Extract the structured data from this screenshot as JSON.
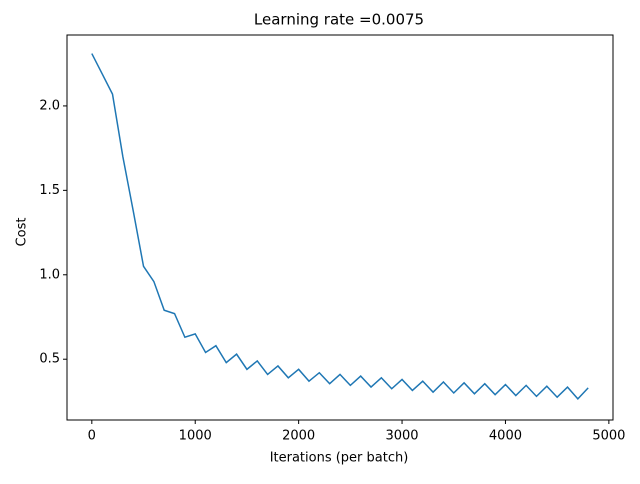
{
  "chart_data": {
    "type": "line",
    "title": "Learning rate =0.0075",
    "xlabel": "Iterations (per batch)",
    "ylabel": "Cost",
    "x": [
      0,
      100,
      200,
      300,
      400,
      500,
      600,
      700,
      800,
      900,
      1000,
      1100,
      1200,
      1300,
      1400,
      1500,
      1600,
      1700,
      1800,
      1900,
      2000,
      2100,
      2200,
      2300,
      2400,
      2500,
      2600,
      2700,
      2800,
      2900,
      3000,
      3100,
      3200,
      3300,
      3400,
      3500,
      3600,
      3700,
      3800,
      3900,
      4000,
      4100,
      4200,
      4300,
      4400,
      4500,
      4600,
      4700,
      4800
    ],
    "series": [
      {
        "name": "Cost",
        "color": "#1f77b4",
        "values": [
          2.31,
          2.19,
          2.07,
          1.7,
          1.38,
          1.05,
          0.96,
          0.79,
          0.77,
          0.63,
          0.65,
          0.54,
          0.58,
          0.48,
          0.53,
          0.44,
          0.49,
          0.41,
          0.46,
          0.39,
          0.44,
          0.37,
          0.42,
          0.355,
          0.41,
          0.345,
          0.4,
          0.335,
          0.39,
          0.325,
          0.38,
          0.315,
          0.37,
          0.305,
          0.365,
          0.3,
          0.36,
          0.295,
          0.355,
          0.29,
          0.35,
          0.285,
          0.345,
          0.28,
          0.34,
          0.275,
          0.335,
          0.265,
          0.33
        ]
      }
    ],
    "xlim": [
      -240,
      5040
    ],
    "ylim": [
      0.14,
      2.42
    ],
    "xticks": [
      0,
      1000,
      2000,
      3000,
      4000,
      5000
    ],
    "yticks": [
      0.5,
      {
        "value": 1.0,
        "label": "1.0"
      },
      1.5,
      {
        "value": 2.0,
        "label": "2.0"
      }
    ],
    "grid": false
  }
}
